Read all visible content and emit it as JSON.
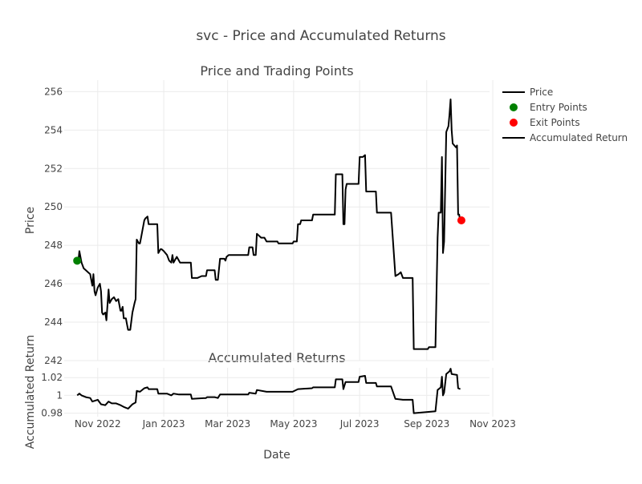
{
  "figure": {
    "title": "svc - Price and Accumulated Returns",
    "x_axis_title": "Date"
  },
  "legend": {
    "placement": "top-right",
    "items": [
      {
        "label": "Price",
        "kind": "line",
        "color": "#000000"
      },
      {
        "label": "Entry Points",
        "kind": "marker",
        "color": "#008000"
      },
      {
        "label": "Exit Points",
        "kind": "marker",
        "color": "#ff0000"
      },
      {
        "label": "Accumulated Return",
        "kind": "line",
        "color": "#000000"
      }
    ]
  },
  "chart_data": [
    {
      "type": "line",
      "title": "Price and Trading Points",
      "xlabel": "",
      "ylabel": "Price",
      "ylim": [
        242,
        256.6
      ],
      "yticks": [
        242,
        244,
        246,
        248,
        250,
        252,
        254,
        256
      ],
      "xlim": [
        "2022-10-01",
        "2023-10-29"
      ],
      "xticks": [
        {
          "value": "2022-11-01",
          "label": "Nov 2022"
        },
        {
          "value": "2023-01-01",
          "label": "Jan 2023"
        },
        {
          "value": "2023-03-01",
          "label": "Mar 2023"
        },
        {
          "value": "2023-05-01",
          "label": "May 2023"
        },
        {
          "value": "2023-07-01",
          "label": "Jul 2023"
        },
        {
          "value": "2023-09-01",
          "label": "Sep 2023"
        },
        {
          "value": "2023-11-01",
          "label": "Nov 2023"
        }
      ],
      "grid": true,
      "series": [
        {
          "name": "Price",
          "color": "#000000",
          "points": [
            [
              "2022-10-13",
              247.2
            ],
            [
              "2022-10-14",
              247.1
            ],
            [
              "2022-10-15",
              247.7
            ],
            [
              "2022-10-17",
              247.1
            ],
            [
              "2022-10-19",
              246.8
            ],
            [
              "2022-10-21",
              246.7
            ],
            [
              "2022-10-23",
              246.6
            ],
            [
              "2022-10-25",
              246.5
            ],
            [
              "2022-10-26",
              246.2
            ],
            [
              "2022-10-27",
              245.9
            ],
            [
              "2022-10-28",
              246.5
            ],
            [
              "2022-10-29",
              245.6
            ],
            [
              "2022-10-30",
              245.4
            ],
            [
              "2022-11-01",
              245.8
            ],
            [
              "2022-11-03",
              246.0
            ],
            [
              "2022-11-04",
              245.6
            ],
            [
              "2022-11-05",
              244.5
            ],
            [
              "2022-11-06",
              244.4
            ],
            [
              "2022-11-08",
              244.5
            ],
            [
              "2022-11-09",
              244.1
            ],
            [
              "2022-11-11",
              245.7
            ],
            [
              "2022-11-12",
              245.0
            ],
            [
              "2022-11-14",
              245.2
            ],
            [
              "2022-11-16",
              245.3
            ],
            [
              "2022-11-18",
              245.1
            ],
            [
              "2022-11-20",
              245.2
            ],
            [
              "2022-11-22",
              244.6
            ],
            [
              "2022-11-23",
              244.6
            ],
            [
              "2022-11-24",
              244.8
            ],
            [
              "2022-11-25",
              244.2
            ],
            [
              "2022-11-27",
              244.2
            ],
            [
              "2022-11-28",
              243.9
            ],
            [
              "2022-11-29",
              243.6
            ],
            [
              "2022-12-01",
              243.6
            ],
            [
              "2022-12-03",
              244.5
            ],
            [
              "2022-12-05",
              245.0
            ],
            [
              "2022-12-06",
              245.2
            ],
            [
              "2022-12-07",
              248.3
            ],
            [
              "2022-12-09",
              248.1
            ],
            [
              "2022-12-10",
              248.1
            ],
            [
              "2022-12-11",
              248.4
            ],
            [
              "2022-12-14",
              249.3
            ],
            [
              "2022-12-15",
              249.4
            ],
            [
              "2022-12-17",
              249.5
            ],
            [
              "2022-12-18",
              249.1
            ],
            [
              "2022-12-21",
              249.1
            ],
            [
              "2022-12-26",
              249.1
            ],
            [
              "2022-12-27",
              247.6
            ],
            [
              "2022-12-29",
              247.8
            ],
            [
              "2022-12-30",
              247.8
            ],
            [
              "2023-01-01",
              247.7
            ],
            [
              "2023-01-04",
              247.5
            ],
            [
              "2023-01-06",
              247.2
            ],
            [
              "2023-01-08",
              247.1
            ],
            [
              "2023-01-09",
              247.5
            ],
            [
              "2023-01-10",
              247.1
            ],
            [
              "2023-01-13",
              247.4
            ],
            [
              "2023-01-15",
              247.2
            ],
            [
              "2023-01-16",
              247.1
            ],
            [
              "2023-01-26",
              247.1
            ],
            [
              "2023-01-27",
              246.3
            ],
            [
              "2023-02-01",
              246.3
            ],
            [
              "2023-02-05",
              246.4
            ],
            [
              "2023-02-09",
              246.4
            ],
            [
              "2023-02-10",
              246.7
            ],
            [
              "2023-02-17",
              246.7
            ],
            [
              "2023-02-18",
              246.2
            ],
            [
              "2023-02-20",
              246.2
            ],
            [
              "2023-02-22",
              247.3
            ],
            [
              "2023-02-26",
              247.3
            ],
            [
              "2023-02-27",
              247.2
            ],
            [
              "2023-02-28",
              247.4
            ],
            [
              "2023-03-02",
              247.5
            ],
            [
              "2023-03-04",
              247.5
            ],
            [
              "2023-03-10",
              247.5
            ],
            [
              "2023-03-20",
              247.5
            ],
            [
              "2023-03-21",
              247.9
            ],
            [
              "2023-03-24",
              247.9
            ],
            [
              "2023-03-25",
              247.5
            ],
            [
              "2023-03-27",
              247.5
            ],
            [
              "2023-03-28",
              248.6
            ],
            [
              "2023-04-01",
              248.4
            ],
            [
              "2023-04-04",
              248.4
            ],
            [
              "2023-04-06",
              248.2
            ],
            [
              "2023-04-16",
              248.2
            ],
            [
              "2023-04-17",
              248.1
            ],
            [
              "2023-04-30",
              248.1
            ],
            [
              "2023-05-01",
              248.2
            ],
            [
              "2023-05-04",
              248.2
            ],
            [
              "2023-05-05",
              249.1
            ],
            [
              "2023-05-07",
              249.1
            ],
            [
              "2023-05-08",
              249.3
            ],
            [
              "2023-05-15",
              249.3
            ],
            [
              "2023-05-18",
              249.3
            ],
            [
              "2023-05-19",
              249.6
            ],
            [
              "2023-05-30",
              249.6
            ],
            [
              "2023-06-08",
              249.6
            ],
            [
              "2023-06-09",
              251.7
            ],
            [
              "2023-06-15",
              251.7
            ],
            [
              "2023-06-16",
              249.1
            ],
            [
              "2023-06-17",
              249.1
            ],
            [
              "2023-06-18",
              250.9
            ],
            [
              "2023-06-19",
              251.2
            ],
            [
              "2023-06-28",
              251.2
            ],
            [
              "2023-06-30",
              251.2
            ],
            [
              "2023-07-01",
              252.6
            ],
            [
              "2023-07-04",
              252.6
            ],
            [
              "2023-07-06",
              252.7
            ],
            [
              "2023-07-07",
              250.8
            ],
            [
              "2023-07-15",
              250.8
            ],
            [
              "2023-07-16",
              250.8
            ],
            [
              "2023-07-17",
              249.7
            ],
            [
              "2023-07-23",
              249.7
            ],
            [
              "2023-07-29",
              249.7
            ],
            [
              "2023-07-30",
              249.7
            ],
            [
              "2023-08-03",
              246.4
            ],
            [
              "2023-08-06",
              246.5
            ],
            [
              "2023-08-08",
              246.6
            ],
            [
              "2023-08-10",
              246.3
            ],
            [
              "2023-08-19",
              246.3
            ],
            [
              "2023-08-20",
              242.6
            ],
            [
              "2023-08-28",
              242.6
            ],
            [
              "2023-09-02",
              242.6
            ],
            [
              "2023-09-03",
              242.7
            ],
            [
              "2023-09-09",
              242.7
            ],
            [
              "2023-09-11",
              248.4
            ],
            [
              "2023-09-12",
              249.7
            ],
            [
              "2023-09-14",
              249.7
            ],
            [
              "2023-09-15",
              252.6
            ],
            [
              "2023-09-16",
              247.6
            ],
            [
              "2023-09-17",
              248.2
            ],
            [
              "2023-09-19",
              253.9
            ],
            [
              "2023-09-21",
              254.2
            ],
            [
              "2023-09-22",
              254.8
            ],
            [
              "2023-09-23",
              255.6
            ],
            [
              "2023-09-24",
              254.0
            ],
            [
              "2023-09-25",
              253.3
            ],
            [
              "2023-09-28",
              253.1
            ],
            [
              "2023-09-29",
              253.2
            ],
            [
              "2023-09-30",
              249.6
            ],
            [
              "2023-10-01",
              249.6
            ],
            [
              "2023-10-02",
              249.2
            ]
          ]
        },
        {
          "name": "Entry Points",
          "color": "#008000",
          "mode": "markers",
          "points": [
            [
              "2022-10-13",
              247.2
            ]
          ]
        },
        {
          "name": "Exit Points",
          "color": "#ff0000",
          "mode": "markers",
          "points": [
            [
              "2023-10-03",
              249.3
            ]
          ]
        }
      ]
    },
    {
      "type": "line",
      "title": "Accumulated Returns",
      "xlabel": "Date",
      "ylabel": "Accumulated Return",
      "ylim": [
        0.976,
        1.031
      ],
      "yticks": [
        0.98,
        1,
        1.02
      ],
      "xlim": [
        "2022-10-01",
        "2023-10-29"
      ],
      "grid": true,
      "series": [
        {
          "name": "Accumulated Return",
          "color": "#000000",
          "points": [
            [
              "2022-10-13",
              1.0
            ],
            [
              "2022-10-15",
              1.002
            ],
            [
              "2022-10-17",
              1.0
            ],
            [
              "2022-10-21",
              0.998
            ],
            [
              "2022-10-25",
              0.997
            ],
            [
              "2022-10-27",
              0.993
            ],
            [
              "2022-11-01",
              0.995
            ],
            [
              "2022-11-04",
              0.99
            ],
            [
              "2022-11-08",
              0.989
            ],
            [
              "2022-11-11",
              0.993
            ],
            [
              "2022-11-14",
              0.991
            ],
            [
              "2022-11-18",
              0.991
            ],
            [
              "2022-11-22",
              0.989
            ],
            [
              "2022-11-25",
              0.987
            ],
            [
              "2022-11-29",
              0.985
            ],
            [
              "2022-12-03",
              0.99
            ],
            [
              "2022-12-06",
              0.992
            ],
            [
              "2022-12-07",
              1.005
            ],
            [
              "2022-12-10",
              1.004
            ],
            [
              "2022-12-14",
              1.008
            ],
            [
              "2022-12-17",
              1.009
            ],
            [
              "2022-12-18",
              1.007
            ],
            [
              "2022-12-26",
              1.007
            ],
            [
              "2022-12-27",
              1.002
            ],
            [
              "2023-01-04",
              1.002
            ],
            [
              "2023-01-08",
              1.0
            ],
            [
              "2023-01-10",
              1.002
            ],
            [
              "2023-01-15",
              1.001
            ],
            [
              "2023-01-26",
              1.001
            ],
            [
              "2023-01-27",
              0.996
            ],
            [
              "2023-02-09",
              0.997
            ],
            [
              "2023-02-10",
              0.998
            ],
            [
              "2023-02-17",
              0.998
            ],
            [
              "2023-02-20",
              0.997
            ],
            [
              "2023-02-22",
              1.001
            ],
            [
              "2023-03-20",
              1.001
            ],
            [
              "2023-03-21",
              1.003
            ],
            [
              "2023-03-27",
              1.002
            ],
            [
              "2023-03-28",
              1.006
            ],
            [
              "2023-04-06",
              1.004
            ],
            [
              "2023-04-30",
              1.004
            ],
            [
              "2023-05-05",
              1.007
            ],
            [
              "2023-05-18",
              1.008
            ],
            [
              "2023-05-19",
              1.009
            ],
            [
              "2023-06-08",
              1.009
            ],
            [
              "2023-06-09",
              1.018
            ],
            [
              "2023-06-15",
              1.018
            ],
            [
              "2023-06-16",
              1.007
            ],
            [
              "2023-06-18",
              1.015
            ],
            [
              "2023-06-30",
              1.015
            ],
            [
              "2023-07-01",
              1.021
            ],
            [
              "2023-07-06",
              1.022
            ],
            [
              "2023-07-07",
              1.014
            ],
            [
              "2023-07-16",
              1.014
            ],
            [
              "2023-07-17",
              1.01
            ],
            [
              "2023-07-30",
              1.01
            ],
            [
              "2023-08-03",
              0.996
            ],
            [
              "2023-08-10",
              0.995
            ],
            [
              "2023-08-19",
              0.995
            ],
            [
              "2023-08-20",
              0.98
            ],
            [
              "2023-09-09",
              0.982
            ],
            [
              "2023-09-11",
              1.006
            ],
            [
              "2023-09-14",
              1.009
            ],
            [
              "2023-09-15",
              1.021
            ],
            [
              "2023-09-16",
              1.0
            ],
            [
              "2023-09-17",
              1.003
            ],
            [
              "2023-09-19",
              1.024
            ],
            [
              "2023-09-22",
              1.027
            ],
            [
              "2023-09-23",
              1.03
            ],
            [
              "2023-09-24",
              1.024
            ],
            [
              "2023-09-29",
              1.023
            ],
            [
              "2023-09-30",
              1.008
            ],
            [
              "2023-10-02",
              1.007
            ]
          ]
        }
      ]
    }
  ]
}
